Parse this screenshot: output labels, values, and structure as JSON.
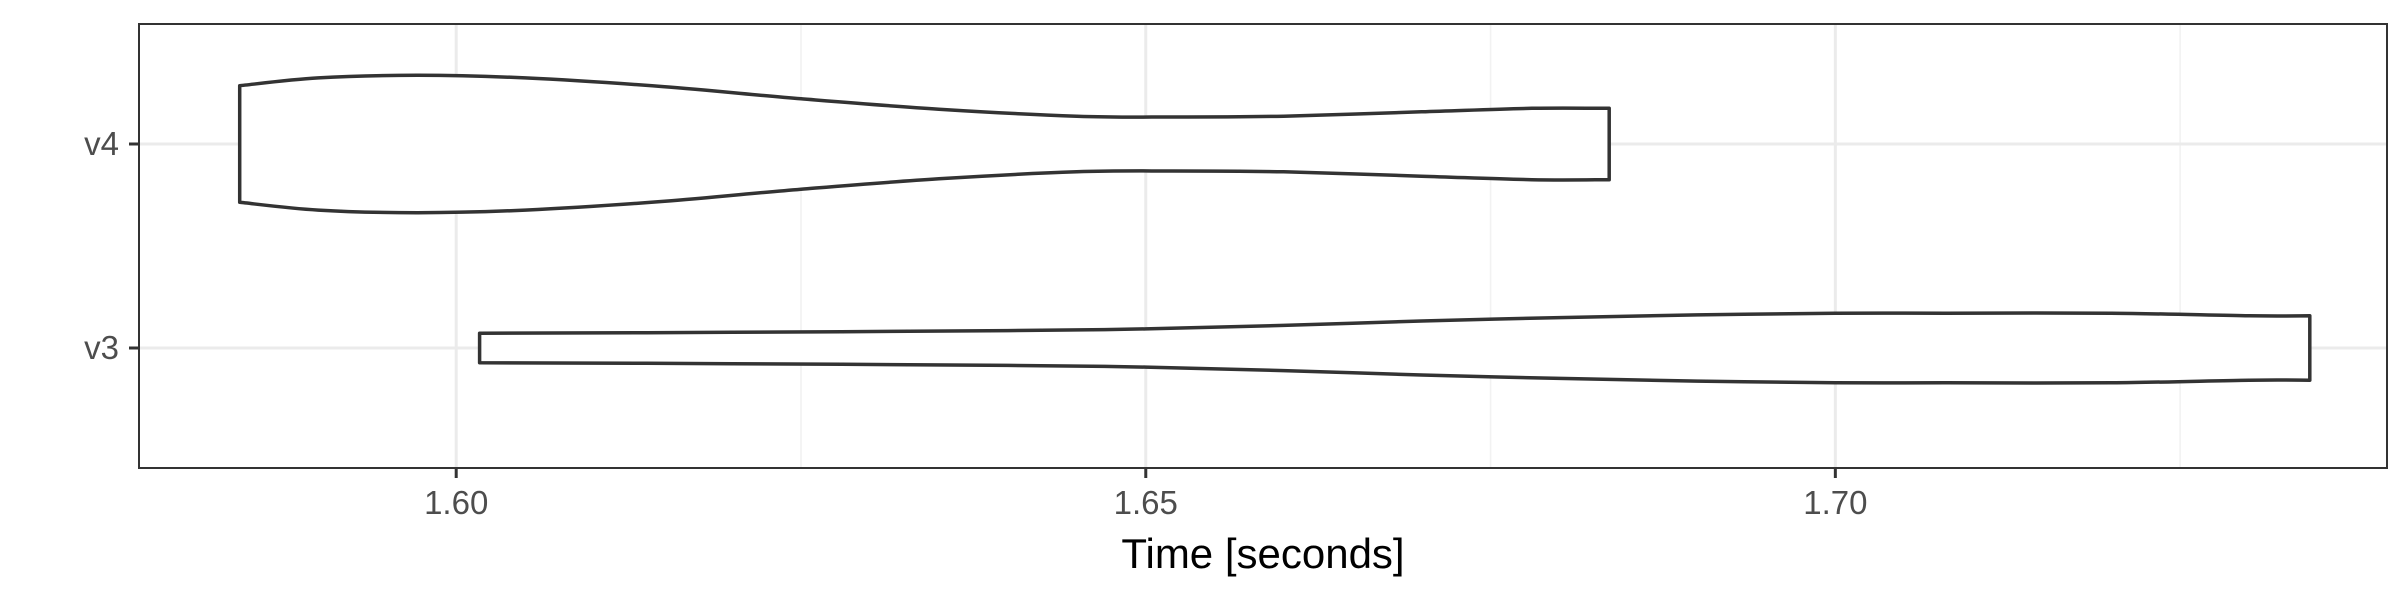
{
  "chart_data": {
    "type": "violin",
    "title": "",
    "xlabel": "Time [seconds]",
    "ylabel": "",
    "orientation": "horizontal",
    "categories": [
      "v3",
      "v4"
    ],
    "xlim": [
      1.577,
      1.74
    ],
    "x_ticks": [
      1.6,
      1.65,
      1.7
    ],
    "x_tick_labels": [
      "1.60",
      "1.65",
      "1.70"
    ],
    "grid": true,
    "colors": {
      "violin_fill": "#ffffff",
      "violin_stroke": "#333333",
      "grid": "#ebebeb",
      "axis_text": "#4d4d4d"
    },
    "series": [
      {
        "name": "v4",
        "min": 1.5843,
        "max": 1.6836,
        "relative_width_profile": [
          [
            1.5843,
            0.67
          ],
          [
            1.59,
            0.76
          ],
          [
            1.5972,
            0.79
          ],
          [
            1.605,
            0.76
          ],
          [
            1.615,
            0.66
          ],
          [
            1.625,
            0.52
          ],
          [
            1.635,
            0.4
          ],
          [
            1.645,
            0.32
          ],
          [
            1.652,
            0.31
          ],
          [
            1.66,
            0.32
          ],
          [
            1.67,
            0.37
          ],
          [
            1.678,
            0.41
          ],
          [
            1.6836,
            0.41
          ]
        ]
      },
      {
        "name": "v3",
        "min": 1.6017,
        "max": 1.7344,
        "relative_width_profile": [
          [
            1.6017,
            0.17
          ],
          [
            1.62,
            0.18
          ],
          [
            1.64,
            0.2
          ],
          [
            1.65,
            0.22
          ],
          [
            1.66,
            0.26
          ],
          [
            1.67,
            0.31
          ],
          [
            1.68,
            0.35
          ],
          [
            1.69,
            0.38
          ],
          [
            1.7,
            0.4
          ],
          [
            1.708,
            0.4
          ],
          [
            1.72,
            0.4
          ],
          [
            1.73,
            0.37
          ],
          [
            1.7344,
            0.37
          ]
        ]
      }
    ]
  }
}
